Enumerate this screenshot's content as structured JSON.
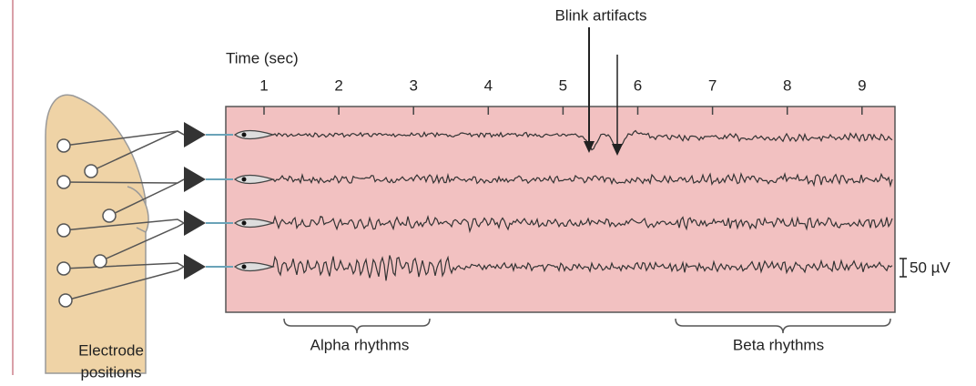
{
  "time_axis": {
    "label": "Time (sec)",
    "ticks": [
      1,
      2,
      3,
      4,
      5,
      6,
      7,
      8,
      9
    ]
  },
  "annotations": {
    "blink": "Blink artifacts",
    "scale": "50 µV",
    "alpha": "Alpha rhythms",
    "beta": "Beta rhythms",
    "electrodes": [
      "Electrode",
      "positions"
    ]
  }
}
